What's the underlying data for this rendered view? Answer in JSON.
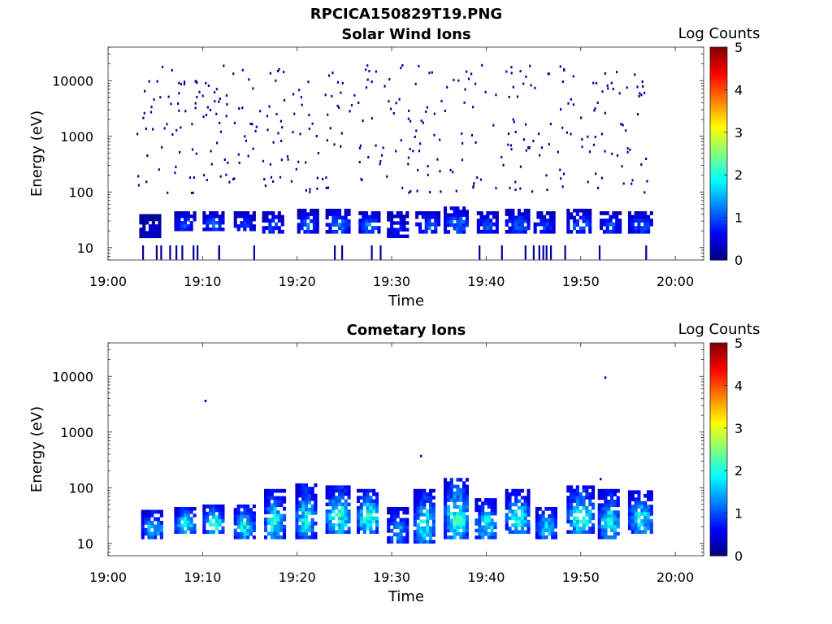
{
  "figure_title": "RPCICA150829T19.PNG",
  "chart_data": [
    {
      "type": "heatmap",
      "title": "Solar Wind Ions",
      "xlabel": "Time",
      "ylabel": "Energy (eV)",
      "x_ticks": [
        "19:00",
        "19:10",
        "19:20",
        "19:30",
        "19:40",
        "19:50",
        "20:00"
      ],
      "x_range_minutes": [
        0,
        63
      ],
      "y_ticks": [
        10,
        100,
        1000,
        10000
      ],
      "y_ticklabels": [
        "10",
        "100",
        "1000",
        "10000"
      ],
      "y_scale": "log",
      "y_range": [
        6,
        40000
      ],
      "colorbar": {
        "label": "Log Counts",
        "ticks": [
          "0",
          "1",
          "2",
          "3",
          "4",
          "5"
        ],
        "range": [
          0,
          5
        ],
        "colormap": "jet"
      },
      "data_time_range_minutes": [
        3.0,
        57.5
      ],
      "description_of_features": "Main population at ~15-40 eV (log counts ~0.5-1.5) occurring in bursts roughly every 3 minutes; sparse single-count background dots from ~100 to ~20000 eV; occasional streaks near 6-10 eV.",
      "bursts": [
        {
          "t": [
            3.3,
            5.6
          ],
          "e_low": 15,
          "e_high": 40,
          "peak": 0.4
        },
        {
          "t": [
            7.0,
            9.0
          ],
          "e_low": 20,
          "e_high": 45,
          "peak": 1.0
        },
        {
          "t": [
            10.0,
            12.0
          ],
          "e_low": 20,
          "e_high": 45,
          "peak": 1.1
        },
        {
          "t": [
            13.3,
            15.3
          ],
          "e_low": 20,
          "e_high": 45,
          "peak": 0.9
        },
        {
          "t": [
            16.3,
            18.3
          ],
          "e_low": 18,
          "e_high": 45,
          "peak": 1.0
        },
        {
          "t": [
            20.0,
            22.0
          ],
          "e_low": 18,
          "e_high": 50,
          "peak": 1.1
        },
        {
          "t": [
            23.0,
            25.5
          ],
          "e_low": 18,
          "e_high": 50,
          "peak": 1.2
        },
        {
          "t": [
            26.5,
            28.5
          ],
          "e_low": 18,
          "e_high": 45,
          "peak": 1.2
        },
        {
          "t": [
            29.5,
            31.5
          ],
          "e_low": 15,
          "e_high": 45,
          "peak": 0.8
        },
        {
          "t": [
            32.5,
            35.0
          ],
          "e_low": 18,
          "e_high": 45,
          "peak": 1.1
        },
        {
          "t": [
            35.5,
            38.0
          ],
          "e_low": 18,
          "e_high": 55,
          "peak": 1.2
        },
        {
          "t": [
            39.0,
            41.0
          ],
          "e_low": 18,
          "e_high": 45,
          "peak": 1.0
        },
        {
          "t": [
            42.0,
            44.5
          ],
          "e_low": 18,
          "e_high": 50,
          "peak": 1.1
        },
        {
          "t": [
            45.0,
            47.0
          ],
          "e_low": 18,
          "e_high": 45,
          "peak": 0.9
        },
        {
          "t": [
            48.5,
            51.0
          ],
          "e_low": 18,
          "e_high": 50,
          "peak": 1.1
        },
        {
          "t": [
            52.0,
            54.0
          ],
          "e_low": 18,
          "e_high": 45,
          "peak": 1.0
        },
        {
          "t": [
            55.0,
            57.5
          ],
          "e_low": 18,
          "e_high": 45,
          "peak": 1.0
        }
      ]
    },
    {
      "type": "heatmap",
      "title": "Cometary Ions",
      "xlabel": "Time",
      "ylabel": "Energy (eV)",
      "x_ticks": [
        "19:00",
        "19:10",
        "19:20",
        "19:30",
        "19:40",
        "19:50",
        "20:00"
      ],
      "x_range_minutes": [
        0,
        63
      ],
      "y_ticks": [
        10,
        100,
        1000,
        10000
      ],
      "y_ticklabels": [
        "10",
        "100",
        "1000",
        "10000"
      ],
      "y_scale": "log",
      "y_range": [
        6,
        40000
      ],
      "colorbar": {
        "label": "Log Counts",
        "ticks": [
          "0",
          "1",
          "2",
          "3",
          "4",
          "5"
        ],
        "range": [
          0,
          5
        ],
        "colormap": "jet"
      },
      "data_time_range_minutes": [
        3.5,
        57.5
      ],
      "description_of_features": "Periodic bursts centred on ~20-40 eV with peak log counts ~1.5-2.2 (cyan), tails extending up to ~100-150 eV; a few isolated counts near 400, 4000 and 10000 eV.",
      "bursts": [
        {
          "t": [
            3.5,
            5.8
          ],
          "e_low": 12,
          "e_high": 40,
          "peak": 1.6
        },
        {
          "t": [
            7.0,
            9.0
          ],
          "e_low": 15,
          "e_high": 45,
          "peak": 1.9
        },
        {
          "t": [
            10.0,
            12.0
          ],
          "e_low": 15,
          "e_high": 50,
          "peak": 2.0
        },
        {
          "t": [
            13.3,
            15.3
          ],
          "e_low": 12,
          "e_high": 50,
          "peak": 1.9
        },
        {
          "t": [
            16.5,
            18.5
          ],
          "e_low": 12,
          "e_high": 95,
          "peak": 1.9
        },
        {
          "t": [
            19.8,
            21.8
          ],
          "e_low": 12,
          "e_high": 120,
          "peak": 1.9
        },
        {
          "t": [
            23.0,
            25.5
          ],
          "e_low": 15,
          "e_high": 110,
          "peak": 2.1
        },
        {
          "t": [
            26.3,
            28.5
          ],
          "e_low": 15,
          "e_high": 95,
          "peak": 2.1
        },
        {
          "t": [
            29.5,
            31.5
          ],
          "e_low": 10,
          "e_high": 45,
          "peak": 1.5
        },
        {
          "t": [
            32.3,
            34.5
          ],
          "e_low": 10,
          "e_high": 95,
          "peak": 1.9
        },
        {
          "t": [
            35.5,
            38.0
          ],
          "e_low": 12,
          "e_high": 150,
          "peak": 2.1
        },
        {
          "t": [
            38.8,
            41.0
          ],
          "e_low": 12,
          "e_high": 65,
          "peak": 1.8
        },
        {
          "t": [
            42.0,
            44.5
          ],
          "e_low": 15,
          "e_high": 95,
          "peak": 1.9
        },
        {
          "t": [
            45.2,
            47.3
          ],
          "e_low": 12,
          "e_high": 45,
          "peak": 1.7
        },
        {
          "t": [
            48.5,
            51.2
          ],
          "e_low": 15,
          "e_high": 110,
          "peak": 2.0
        },
        {
          "t": [
            51.8,
            54.0
          ],
          "e_low": 12,
          "e_high": 95,
          "peak": 1.8
        },
        {
          "t": [
            55.0,
            57.5
          ],
          "e_low": 15,
          "e_high": 90,
          "peak": 1.8
        }
      ],
      "isolated_points": [
        {
          "t": 10.2,
          "e": 3800,
          "v": 0.3
        },
        {
          "t": 33.0,
          "e": 390,
          "v": 0.3
        },
        {
          "t": 52.0,
          "e": 150,
          "v": 0.3
        },
        {
          "t": 52.5,
          "e": 10000,
          "v": 0.3
        }
      ]
    }
  ]
}
